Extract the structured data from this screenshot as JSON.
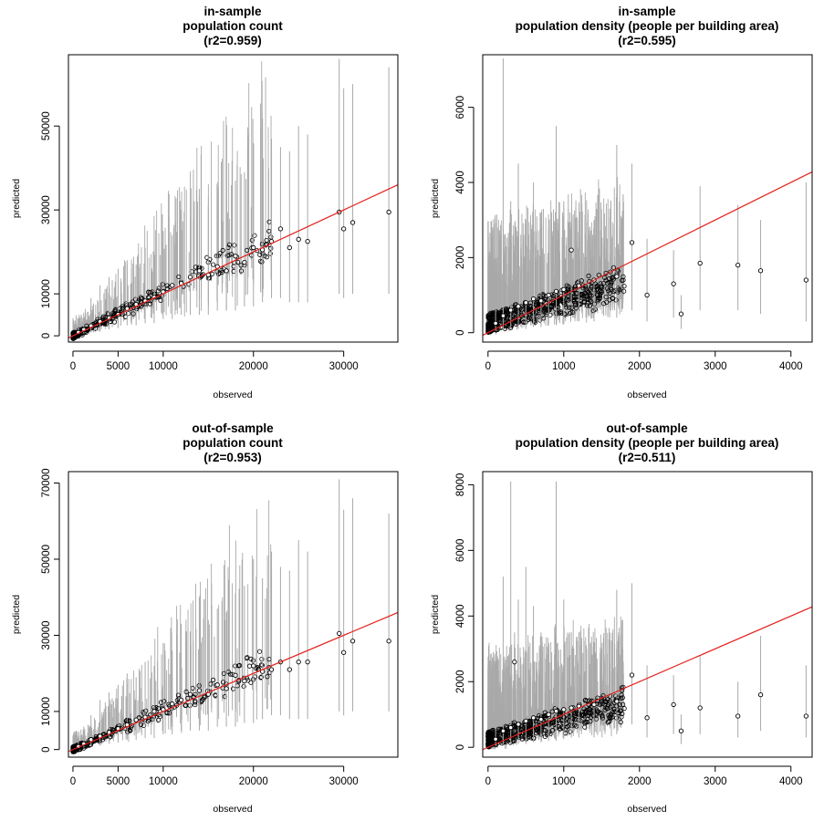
{
  "chart_data": [
    {
      "type": "scatter",
      "title_lines": [
        "in-sample",
        "population count",
        "(r2=0.959)"
      ],
      "xlabel": "observed",
      "ylabel": "predicted",
      "xlim": [
        -500,
        36000
      ],
      "ylim": [
        -1500,
        67000
      ],
      "x_ticks": [
        "0",
        "5000",
        "10000",
        "20000",
        "30000"
      ],
      "x_tick_values": [
        0,
        5000,
        10000,
        20000,
        30000
      ],
      "y_ticks": [
        "0",
        "10000",
        "30000",
        "50000"
      ],
      "y_tick_values": [
        0,
        10000,
        30000,
        50000
      ],
      "fit_line": {
        "intercept": 0,
        "slope": 1.0
      },
      "points": [
        [
          600,
          800,
          400,
          3000
        ],
        [
          1200,
          1500,
          500,
          5500
        ],
        [
          2000,
          2400,
          800,
          9000
        ],
        [
          3000,
          3400,
          1000,
          12000
        ],
        [
          4000,
          4200,
          1500,
          14000
        ],
        [
          5000,
          5100,
          1800,
          16000
        ],
        [
          6000,
          6500,
          2500,
          18000
        ],
        [
          7000,
          7500,
          2500,
          17000
        ],
        [
          8000,
          8300,
          3000,
          21000
        ],
        [
          9000,
          9200,
          3000,
          20000
        ],
        [
          10000,
          10500,
          4000,
          25000
        ],
        [
          11000,
          12000,
          4000,
          24000
        ],
        [
          12000,
          12500,
          5000,
          30000
        ],
        [
          13000,
          14000,
          5000,
          28000
        ],
        [
          14000,
          15500,
          5000,
          35000
        ],
        [
          15000,
          14500,
          5000,
          31000
        ],
        [
          16000,
          16500,
          6000,
          34000
        ],
        [
          17000,
          15500,
          6000,
          33000
        ],
        [
          18000,
          19000,
          6000,
          37000
        ],
        [
          19000,
          17500,
          7000,
          39000
        ],
        [
          20000,
          21000,
          7000,
          46000
        ],
        [
          21000,
          20500,
          8000,
          41000
        ],
        [
          22000,
          22500,
          9000,
          47000
        ],
        [
          23000,
          25500,
          9000,
          45000
        ],
        [
          24000,
          21000,
          8000,
          44000
        ],
        [
          25000,
          23000,
          8000,
          50000
        ],
        [
          26000,
          22500,
          8000,
          48000
        ],
        [
          29500,
          29500,
          10000,
          66000
        ],
        [
          30000,
          25500,
          9000,
          59000
        ],
        [
          31000,
          27000,
          10000,
          60000
        ],
        [
          35000,
          29500,
          10000,
          64000
        ]
      ]
    },
    {
      "type": "scatter",
      "title_lines": [
        "in-sample",
        "population density (people per building area)",
        "(r2=0.595)"
      ],
      "xlabel": "observed",
      "ylabel": "predicted",
      "xlim": [
        -70,
        4280
      ],
      "ylim": [
        -250,
        7400
      ],
      "x_ticks": [
        "0",
        "1000",
        "2000",
        "3000",
        "4000"
      ],
      "x_tick_values": [
        0,
        1000,
        2000,
        3000,
        4000
      ],
      "y_ticks": [
        "0",
        "2000",
        "4000",
        "6000"
      ],
      "y_tick_values": [
        0,
        2000,
        4000,
        6000
      ],
      "fit_line": {
        "intercept": 0,
        "slope": 1.0
      },
      "points": [
        [
          100,
          250,
          50,
          1400
        ],
        [
          200,
          450,
          80,
          7300
        ],
        [
          300,
          600,
          100,
          3500
        ],
        [
          400,
          700,
          100,
          4500
        ],
        [
          500,
          800,
          100,
          3000
        ],
        [
          600,
          900,
          150,
          4000
        ],
        [
          700,
          850,
          150,
          3200
        ],
        [
          800,
          1000,
          200,
          2800
        ],
        [
          900,
          1100,
          200,
          5500
        ],
        [
          1000,
          1150,
          250,
          3500
        ],
        [
          1100,
          2200,
          800,
          2800
        ],
        [
          1200,
          1250,
          300,
          3000
        ],
        [
          1400,
          1400,
          300,
          3000
        ],
        [
          1700,
          1500,
          400,
          5000
        ],
        [
          1900,
          2400,
          600,
          4500
        ],
        [
          2100,
          1000,
          300,
          2500
        ],
        [
          2450,
          1300,
          400,
          2200
        ],
        [
          2550,
          500,
          100,
          1000
        ],
        [
          2800,
          1850,
          600,
          3900
        ],
        [
          3300,
          1800,
          600,
          3400
        ],
        [
          3600,
          1650,
          500,
          3000
        ],
        [
          4200,
          1400,
          300,
          4000
        ]
      ]
    },
    {
      "type": "scatter",
      "title_lines": [
        "out-of-sample",
        "population count",
        "(r2=0.953)"
      ],
      "xlabel": "observed",
      "ylabel": "predicted",
      "xlim": [
        -500,
        36000
      ],
      "ylim": [
        -2000,
        73000
      ],
      "x_ticks": [
        "0",
        "5000",
        "10000",
        "20000",
        "30000"
      ],
      "x_tick_values": [
        0,
        5000,
        10000,
        20000,
        30000
      ],
      "y_ticks": [
        "0",
        "10000",
        "30000",
        "50000",
        "70000"
      ],
      "y_tick_values": [
        0,
        10000,
        30000,
        50000,
        70000
      ],
      "fit_line": {
        "intercept": 0,
        "slope": 1.0
      },
      "points": [
        [
          600,
          800,
          400,
          3000
        ],
        [
          1200,
          1500,
          500,
          6000
        ],
        [
          2000,
          2600,
          800,
          9000
        ],
        [
          3000,
          3500,
          1000,
          13000
        ],
        [
          4000,
          4500,
          1500,
          15000
        ],
        [
          5000,
          5500,
          1800,
          17000
        ],
        [
          6000,
          6500,
          2500,
          20000
        ],
        [
          7000,
          7800,
          2500,
          19000
        ],
        [
          8000,
          8500,
          3000,
          23000
        ],
        [
          9000,
          10000,
          3000,
          22000
        ],
        [
          10000,
          10500,
          4000,
          28000
        ],
        [
          11000,
          12000,
          4000,
          26000
        ],
        [
          12000,
          13000,
          5000,
          33000
        ],
        [
          13000,
          14500,
          5000,
          31000
        ],
        [
          14000,
          15500,
          5000,
          40000
        ],
        [
          15000,
          14500,
          5000,
          34000
        ],
        [
          16000,
          17000,
          6000,
          37000
        ],
        [
          17000,
          16000,
          6000,
          36000
        ],
        [
          18000,
          19500,
          6000,
          41000
        ],
        [
          19000,
          18000,
          7000,
          43000
        ],
        [
          20000,
          22000,
          7000,
          50000
        ],
        [
          21000,
          20500,
          8000,
          45000
        ],
        [
          22000,
          21000,
          9000,
          52000
        ],
        [
          23000,
          23000,
          9000,
          48000
        ],
        [
          24000,
          21000,
          8000,
          47000
        ],
        [
          25000,
          23000,
          8000,
          55000
        ],
        [
          26000,
          23000,
          8000,
          52000
        ],
        [
          29500,
          30500,
          10000,
          71000
        ],
        [
          30000,
          25500,
          9000,
          63000
        ],
        [
          31000,
          28500,
          10000,
          66000
        ],
        [
          35000,
          28500,
          10000,
          62000
        ]
      ]
    },
    {
      "type": "scatter",
      "title_lines": [
        "out-of-sample",
        "population density (people per building area)",
        "(r2=0.511)"
      ],
      "xlabel": "observed",
      "ylabel": "predicted",
      "xlim": [
        -70,
        4280
      ],
      "ylim": [
        -300,
        8400
      ],
      "x_ticks": [
        "0",
        "1000",
        "2000",
        "3000",
        "4000"
      ],
      "x_tick_values": [
        0,
        1000,
        2000,
        3000,
        4000
      ],
      "y_ticks": [
        "0",
        "2000",
        "4000",
        "6000",
        "8000"
      ],
      "y_tick_values": [
        0,
        2000,
        4000,
        6000,
        8000
      ],
      "fit_line": {
        "intercept": 0,
        "slope": 1.0
      },
      "points": [
        [
          100,
          250,
          50,
          1500
        ],
        [
          200,
          500,
          80,
          5200
        ],
        [
          300,
          600,
          100,
          8100
        ],
        [
          350,
          2600,
          900,
          3500
        ],
        [
          400,
          700,
          100,
          4500
        ],
        [
          500,
          800,
          100,
          5500
        ],
        [
          600,
          900,
          150,
          4300
        ],
        [
          700,
          850,
          150,
          3500
        ],
        [
          800,
          1000,
          200,
          3000
        ],
        [
          900,
          1100,
          200,
          8100
        ],
        [
          1000,
          1150,
          250,
          4500
        ],
        [
          1100,
          1200,
          300,
          3500
        ],
        [
          1200,
          1250,
          300,
          3500
        ],
        [
          1400,
          1300,
          300,
          3200
        ],
        [
          1700,
          1400,
          400,
          4800
        ],
        [
          1900,
          2200,
          700,
          5000
        ],
        [
          2100,
          900,
          300,
          2500
        ],
        [
          2450,
          1300,
          400,
          2200
        ],
        [
          2550,
          500,
          100,
          1000
        ],
        [
          2800,
          1200,
          400,
          2800
        ],
        [
          3300,
          950,
          300,
          2000
        ],
        [
          3600,
          1600,
          500,
          3400
        ],
        [
          4200,
          950,
          300,
          2500
        ]
      ]
    }
  ]
}
